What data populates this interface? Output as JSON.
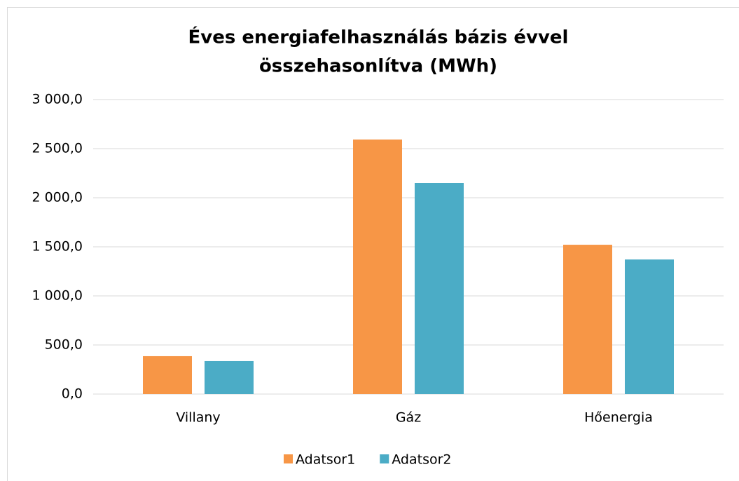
{
  "chart_data": {
    "type": "bar",
    "title": [
      "Éves energiafelhasználás bázis évvel",
      "összehasonlítva (MWh)"
    ],
    "categories": [
      "Villany",
      "Gáz",
      "Hőenergia"
    ],
    "series": [
      {
        "name": "Adatsor1",
        "color": "#f79646",
        "values": [
          386,
          2593,
          1521
        ]
      },
      {
        "name": "Adatsor2",
        "color": "#4bacc6",
        "values": [
          336,
          2150,
          1371
        ]
      }
    ],
    "ylim": [
      0,
      3000
    ],
    "yticks": [
      {
        "value": 0,
        "label": "0,0"
      },
      {
        "value": 500,
        "label": "500,0"
      },
      {
        "value": 1000,
        "label": "1 000,0"
      },
      {
        "value": 1500,
        "label": "1 500,0"
      },
      {
        "value": 2000,
        "label": "2 000,0"
      },
      {
        "value": 2500,
        "label": "2 500,0"
      },
      {
        "value": 3000,
        "label": "3 000,0"
      }
    ],
    "grid": true,
    "legend": "bottom"
  }
}
